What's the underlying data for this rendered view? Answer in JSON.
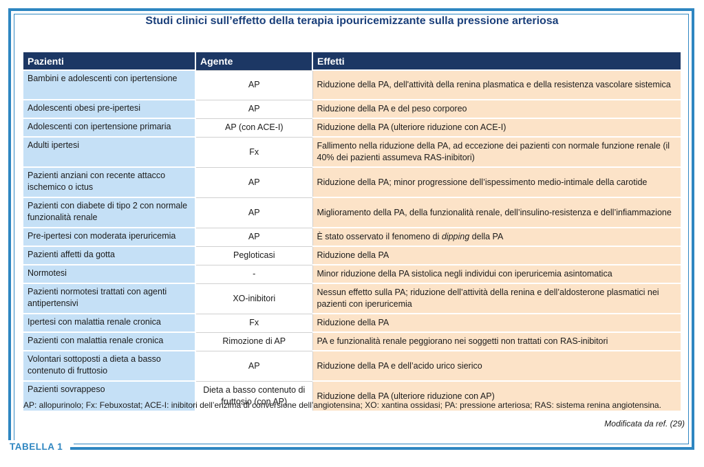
{
  "title": "Studi clinici sull’effetto della terapia ipouricemizzante sulla pressione arteriosa",
  "table": {
    "headers": [
      "Pazienti",
      "Agente",
      "Effetti"
    ],
    "rows": [
      {
        "pazienti": "Bambini e adolescenti con ipertensione",
        "agente": "AP",
        "effetti": "Riduzione della PA, dell'attività della renina plasmatica e della resistenza vascolare sistemica"
      },
      {
        "pazienti": "Adolescenti obesi pre-ipertesi",
        "agente": "AP",
        "effetti": "Riduzione della PA e del peso corporeo"
      },
      {
        "pazienti": "Adolescenti con ipertensione primaria",
        "agente": "AP (con ACE-I)",
        "effetti": "Riduzione della PA (ulteriore riduzione con ACE-I)"
      },
      {
        "pazienti": "Adulti ipertesi",
        "agente": "Fx",
        "effetti": "Fallimento nella riduzione della PA, ad eccezione dei pazienti con normale funzione renale (il 40% dei pazienti assumeva RAS-inibitori)"
      },
      {
        "pazienti": "Pazienti anziani con recente attacco ischemico o ictus",
        "agente": "AP",
        "effetti": "Riduzione della PA; minor progressione dell’ispessimento medio-intimale della carotide"
      },
      {
        "pazienti": "Pazienti con diabete di tipo 2 con normale funzionalità renale",
        "agente": "AP",
        "effetti": "Miglioramento della PA, della funzionalità renale, dell’insulino-resistenza e dell’infiammazione"
      },
      {
        "pazienti": "Pre-ipertesi con moderata iperuricemia",
        "agente": "AP",
        "effetti_pre": "È stato osservato il fenomeno di ",
        "effetti_em": "dipping",
        "effetti_post": " della PA"
      },
      {
        "pazienti": "Pazienti affetti da gotta",
        "agente": "Pegloticasi",
        "effetti": "Riduzione della PA"
      },
      {
        "pazienti": "Normotesi",
        "agente": "-",
        "effetti": "Minor riduzione della PA sistolica negli individui con iperuricemia asintomatica"
      },
      {
        "pazienti": "Pazienti normotesi trattati con agenti antipertensivi",
        "agente": "XO-inibitori",
        "effetti": "Nessun effetto sulla PA; riduzione dell’attività della renina e dell’aldosterone plasmatici nei pazienti con iperuricemia"
      },
      {
        "pazienti": "Ipertesi con malattia renale cronica",
        "agente": "Fx",
        "effetti": "Riduzione della PA"
      },
      {
        "pazienti": "Pazienti con malattia renale cronica",
        "agente": "Rimozione di AP",
        "effetti": "PA e funzionalità renale peggiorano nei soggetti non trattati con RAS-inibitori"
      },
      {
        "pazienti": "Volontari sottoposti a dieta a basso contenuto di fruttosio",
        "agente": "AP",
        "effetti": "Riduzione della PA e dell’acido urico sierico"
      },
      {
        "pazienti": "Pazienti sovrappeso",
        "agente": "Dieta a basso contenuto di fruttosio (con AP)",
        "effetti": "Riduzione della PA (ulteriore riduzione con AP)"
      }
    ]
  },
  "footnote": "AP: allopurinolo; Fx: Febuxostat; ACE-I: inibitori dell’enzima di conversione dell’angiotensina; XO: xantina ossidasi; PA: pressione arteriosa; RAS: sistema renina angiotensina.",
  "source": "Modificata da ref. (29)",
  "badge": "TABELLA 1",
  "colors": {
    "frame": "#2e86c1",
    "header_bg": "#1c3764",
    "col1_bg": "#c5e0f6",
    "col3_bg": "#fce3c8",
    "title": "#1a3f7a"
  }
}
